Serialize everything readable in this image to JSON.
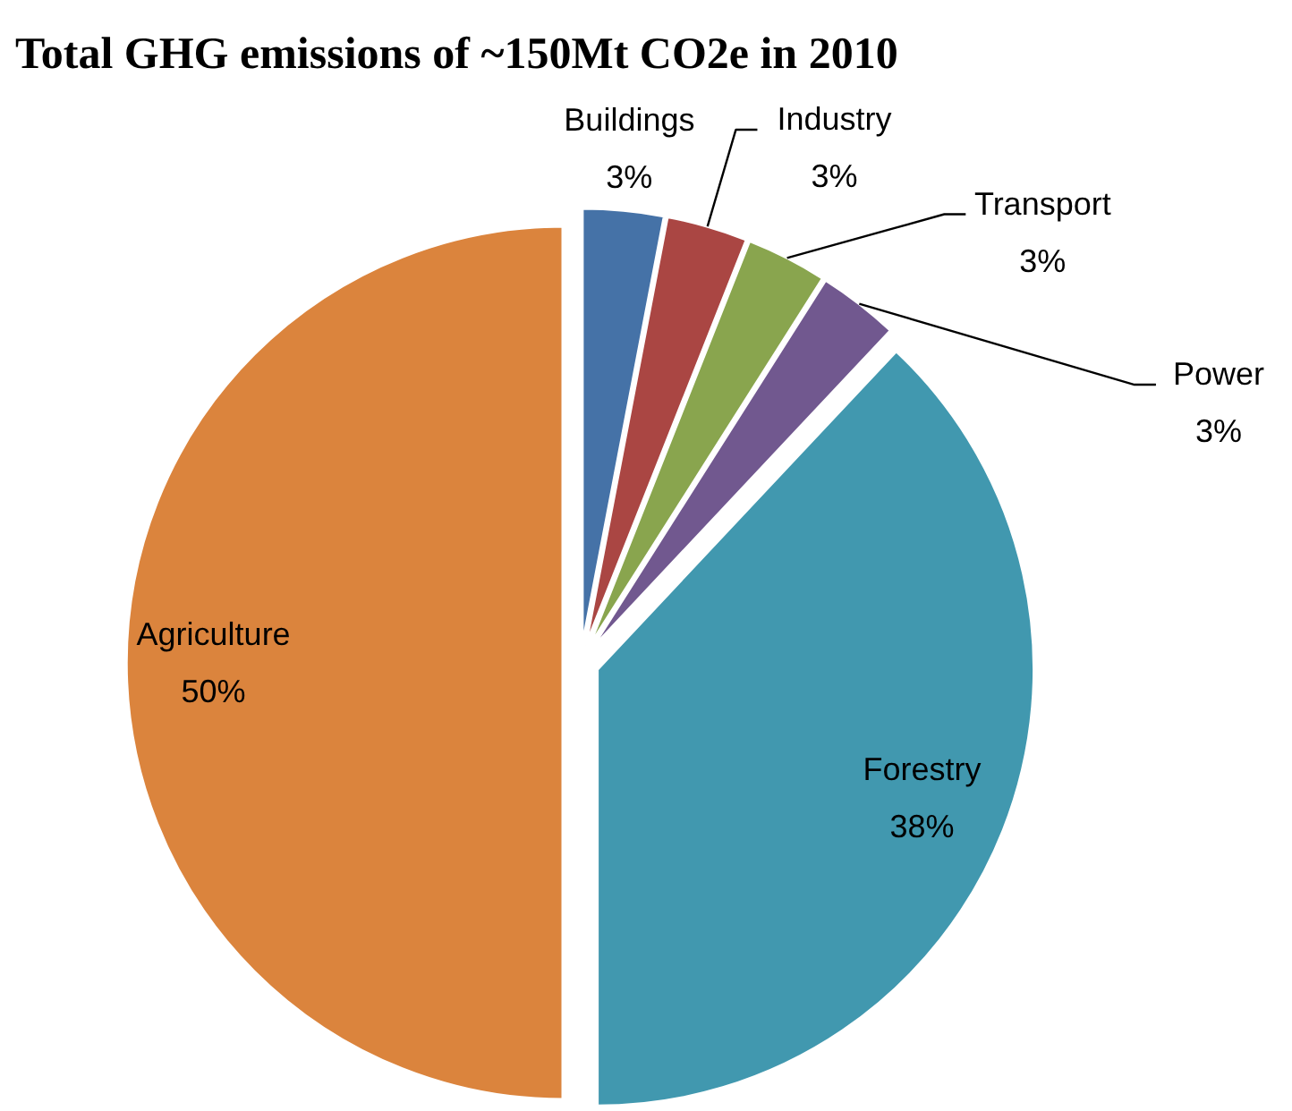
{
  "chart_data": {
    "type": "pie",
    "title": "Total GHG emissions of ~150Mt CO2e in 2010",
    "categories": [
      "Buildings",
      "Industry",
      "Transport",
      "Power",
      "Forestry",
      "Agriculture"
    ],
    "values": [
      3,
      3,
      3,
      3,
      38,
      50
    ],
    "value_labels": [
      "3%",
      "3%",
      "3%",
      "3%",
      "38%",
      "50%"
    ],
    "colors": [
      "#4572a7",
      "#aa4643",
      "#89a54e",
      "#71588f",
      "#4198af",
      "#db843d"
    ]
  }
}
